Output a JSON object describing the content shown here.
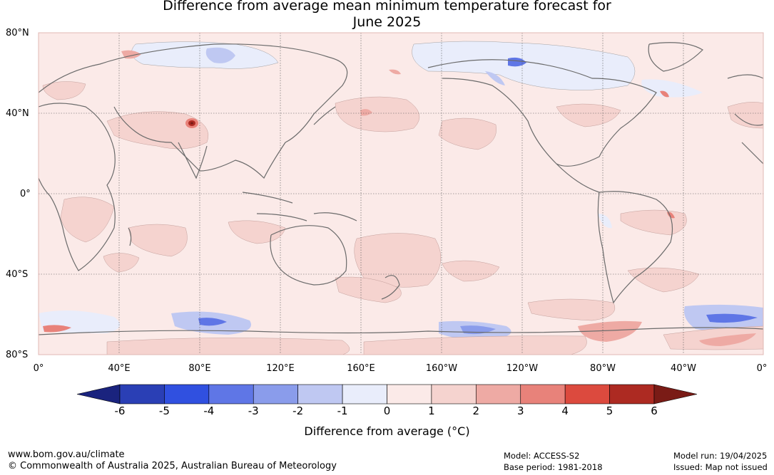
{
  "title_line1": "Difference from average mean minimum temperature forecast for",
  "title_line2": "June 2025",
  "lat_labels": [
    "80°N",
    "40°N",
    "0°",
    "40°S",
    "80°S"
  ],
  "lon_labels": [
    "0°",
    "40°E",
    "80°E",
    "120°E",
    "160°E",
    "160°W",
    "120°W",
    "80°W",
    "40°W",
    "0°"
  ],
  "colorbar": {
    "ticks": [
      "-6",
      "-5",
      "-4",
      "-3",
      "-2",
      "-1",
      "0",
      "1",
      "2",
      "3",
      "4",
      "5",
      "6"
    ],
    "colors": [
      "#1a237e",
      "#2a3fb5",
      "#3050e0",
      "#5f76e6",
      "#8a9ceb",
      "#bfc8f2",
      "#e9edfb",
      "#fbeae8",
      "#f5d3cf",
      "#eeaaa4",
      "#e8827a",
      "#dc4a3e",
      "#ad2a22",
      "#7a1b16"
    ],
    "title": "Difference from average (°C)"
  },
  "footer": {
    "website": "www.bom.gov.au/climate",
    "copyright": "© Commonwealth of Australia 2025, Australian Bureau of Meteorology",
    "model": "Model: ACCESS-S2",
    "base_period": "Base period: 1981-2018",
    "model_run": "Model run: 19/04/2025",
    "issued": "Issued: Map not issued"
  }
}
